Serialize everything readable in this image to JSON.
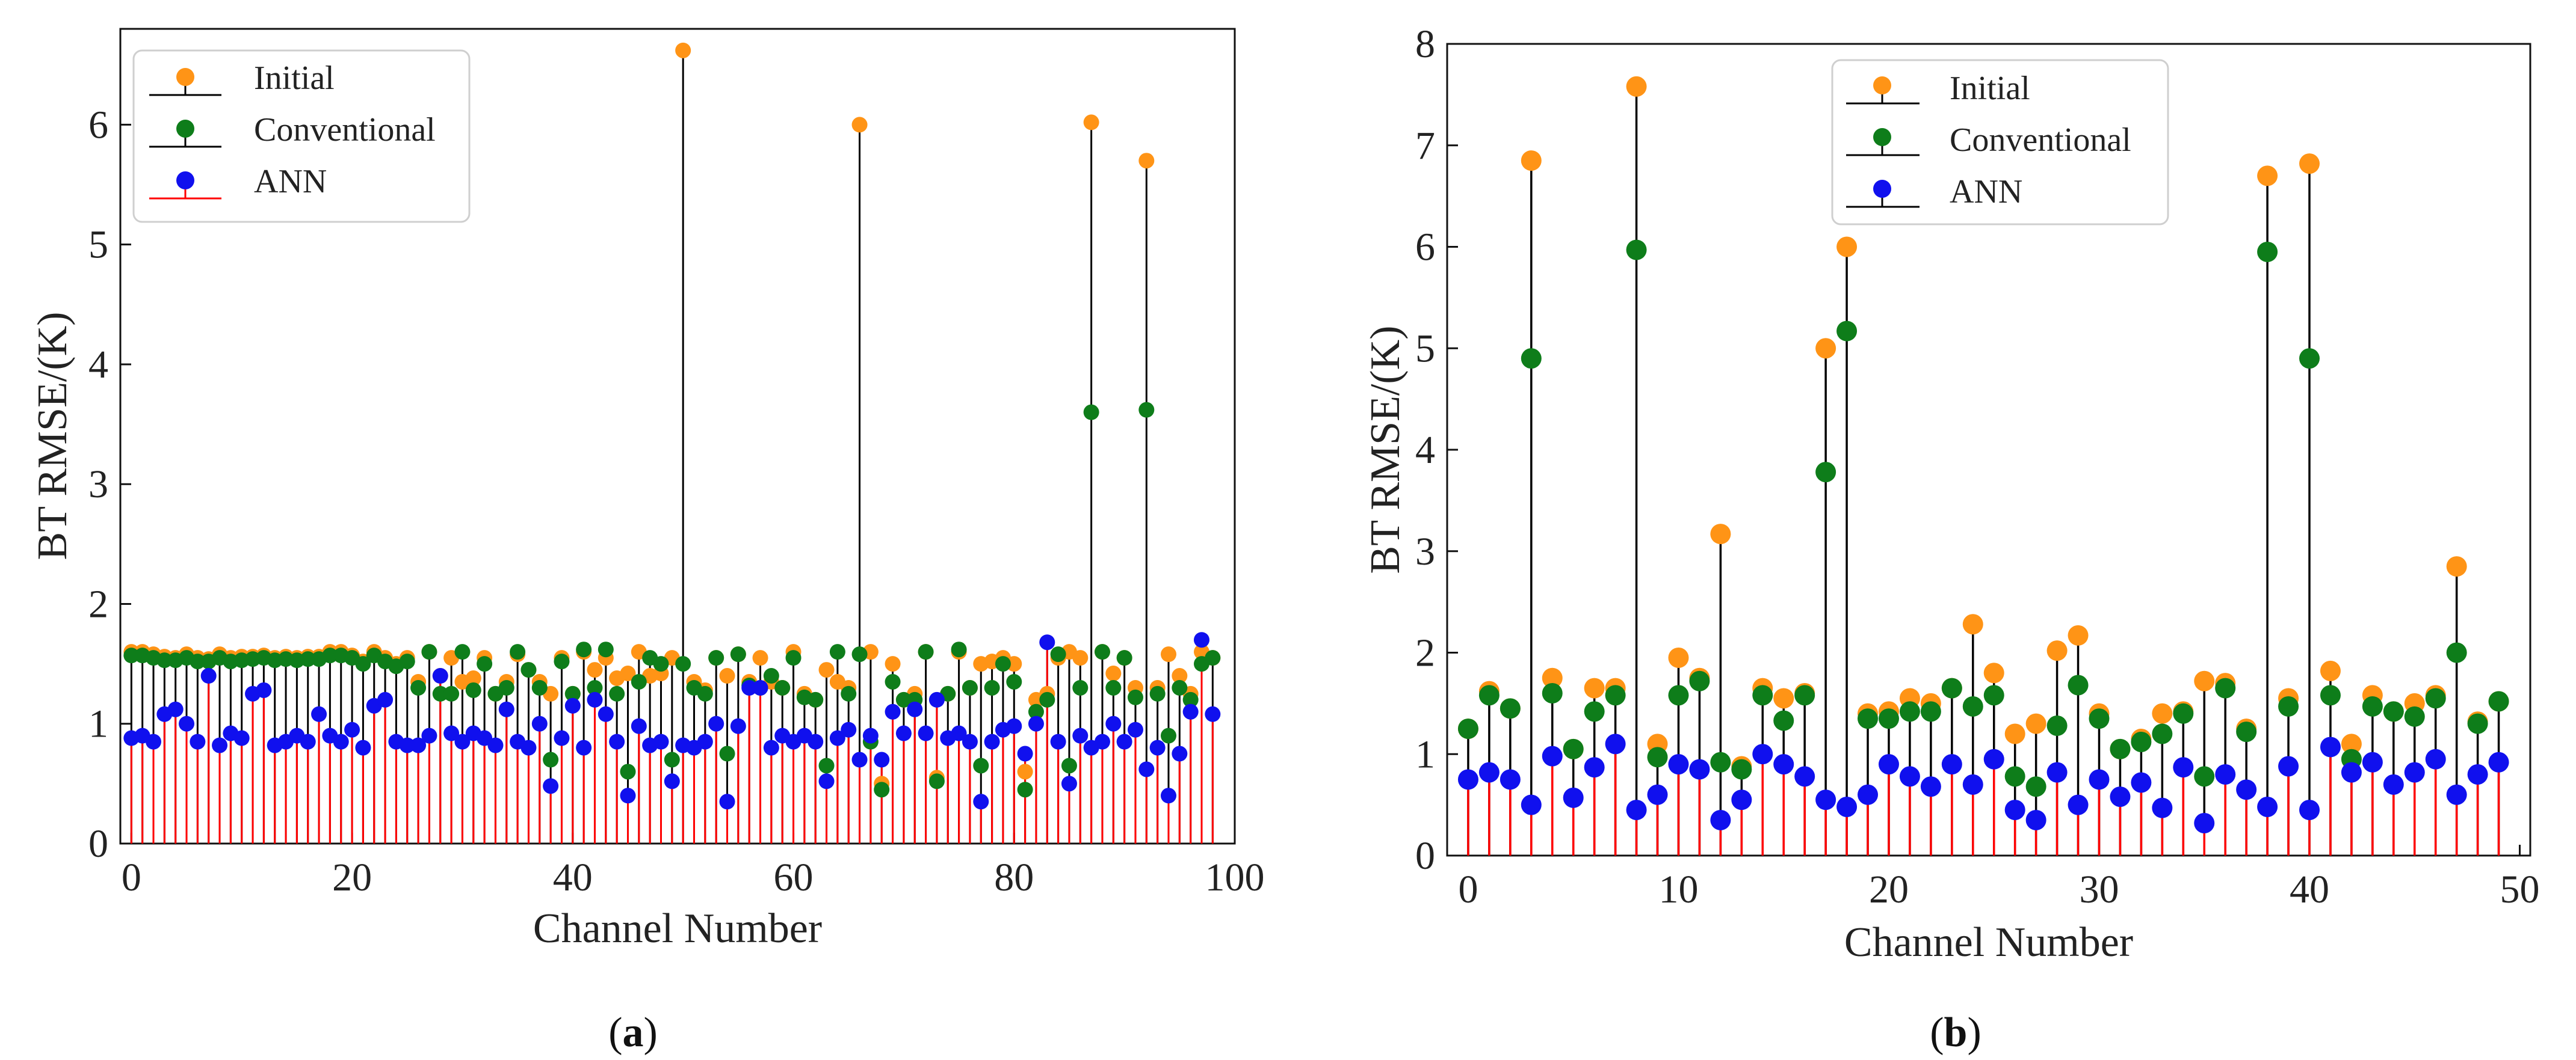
{
  "figure": {
    "series_colors": {
      "Initial": "#ff9416",
      "Conventional": "#0e7d1a",
      "ANN": "#1010ee"
    },
    "stem_colors": {
      "upper": "#000000",
      "base": "#ff0000"
    }
  },
  "chart_data": [
    {
      "type": "scatter",
      "subtype": "stem",
      "panel": {
        "open": "(",
        "letter": "a",
        "close": ")"
      },
      "title": "",
      "xlabel": "Channel Number",
      "ylabel": "BT RMSE/(K)",
      "xlim": [
        -1,
        100
      ],
      "ylim": [
        0,
        6.8
      ],
      "xticks": [
        0,
        20,
        40,
        60,
        80,
        100
      ],
      "yticks": [
        0,
        1,
        2,
        3,
        4,
        5,
        6
      ],
      "xtick_labels": [
        "0",
        "20",
        "40",
        "60",
        "80",
        "100"
      ],
      "ytick_labels": [
        "0",
        "1",
        "2",
        "3",
        "4",
        "5",
        "6"
      ],
      "legend": {
        "placement": "top-left",
        "entries": [
          "Initial",
          "Conventional",
          "ANN"
        ]
      },
      "x": [
        0,
        1,
        2,
        3,
        4,
        5,
        6,
        7,
        8,
        9,
        10,
        11,
        12,
        13,
        14,
        15,
        16,
        17,
        18,
        19,
        20,
        21,
        22,
        23,
        24,
        25,
        26,
        27,
        28,
        29,
        30,
        31,
        32,
        33,
        34,
        35,
        36,
        37,
        38,
        39,
        40,
        41,
        42,
        43,
        44,
        45,
        46,
        47,
        48,
        49,
        50,
        51,
        52,
        53,
        54,
        55,
        56,
        57,
        58,
        59,
        60,
        61,
        62,
        63,
        64,
        65,
        66,
        67,
        68,
        69,
        70,
        71,
        72,
        73,
        74,
        75,
        76,
        77,
        78,
        79,
        80,
        81,
        82,
        83,
        84,
        85,
        86,
        87,
        88,
        89,
        90,
        91,
        92,
        93,
        94,
        95,
        96,
        97,
        98
      ],
      "series": [
        {
          "name": "Initial",
          "values": [
            1.6,
            1.6,
            1.58,
            1.56,
            1.55,
            1.58,
            1.55,
            1.54,
            1.58,
            1.55,
            1.56,
            1.56,
            1.57,
            1.55,
            1.56,
            1.55,
            1.56,
            1.56,
            1.6,
            1.6,
            1.57,
            1.52,
            1.6,
            1.55,
            1.5,
            1.55,
            1.35,
            1.6,
            1.4,
            1.55,
            1.35,
            1.38,
            1.55,
            1.25,
            1.35,
            1.58,
            1.45,
            1.35,
            1.25,
            1.55,
            1.25,
            1.6,
            1.45,
            1.55,
            1.38,
            1.42,
            1.6,
            1.4,
            1.42,
            1.55,
            6.62,
            1.35,
            1.28,
            1.55,
            1.4,
            1.58,
            1.35,
            1.55,
            1.35,
            1.3,
            1.6,
            1.25,
            1.2,
            1.45,
            1.35,
            1.3,
            6.0,
            1.6,
            0.5,
            1.5,
            1.2,
            1.25,
            1.6,
            0.55,
            1.25,
            1.6,
            1.3,
            1.5,
            1.52,
            1.55,
            1.5,
            0.6,
            1.2,
            1.25,
            1.55,
            1.6,
            1.55,
            6.02,
            1.6,
            1.42,
            1.55,
            1.3,
            5.7,
            1.3,
            1.58,
            1.4,
            1.25,
            1.6,
            1.55
          ]
        },
        {
          "name": "Conventional",
          "values": [
            1.57,
            1.57,
            1.55,
            1.53,
            1.53,
            1.55,
            1.52,
            1.52,
            1.55,
            1.52,
            1.53,
            1.54,
            1.55,
            1.53,
            1.54,
            1.53,
            1.54,
            1.54,
            1.57,
            1.57,
            1.55,
            1.5,
            1.57,
            1.52,
            1.48,
            1.52,
            1.3,
            1.6,
            1.25,
            1.25,
            1.6,
            1.28,
            1.5,
            1.25,
            1.3,
            1.6,
            1.45,
            1.3,
            0.7,
            1.52,
            1.25,
            1.62,
            1.3,
            1.62,
            1.25,
            0.6,
            1.35,
            1.55,
            1.5,
            0.7,
            1.5,
            1.3,
            1.25,
            1.55,
            0.75,
            1.58,
            1.32,
            1.3,
            1.4,
            1.3,
            1.55,
            1.22,
            1.2,
            0.65,
            1.6,
            1.25,
            1.58,
            0.85,
            0.45,
            1.35,
            1.2,
            1.2,
            1.6,
            0.52,
            1.25,
            1.62,
            1.3,
            0.65,
            1.3,
            1.5,
            1.35,
            0.45,
            1.1,
            1.2,
            1.58,
            0.65,
            1.3,
            3.6,
            1.6,
            1.3,
            1.55,
            1.22,
            3.62,
            1.25,
            0.9,
            1.3,
            1.2,
            1.5,
            1.55
          ]
        },
        {
          "name": "ANN",
          "values": [
            0.88,
            0.9,
            0.85,
            1.08,
            1.12,
            1.0,
            0.85,
            1.4,
            0.82,
            0.92,
            0.88,
            1.25,
            1.28,
            0.82,
            0.85,
            0.9,
            0.85,
            1.08,
            0.9,
            0.85,
            0.95,
            0.8,
            1.15,
            1.2,
            0.85,
            0.82,
            0.82,
            0.9,
            1.4,
            0.92,
            0.85,
            0.92,
            0.88,
            0.82,
            1.12,
            0.85,
            0.8,
            1.0,
            0.48,
            0.88,
            1.15,
            0.8,
            1.2,
            1.08,
            0.85,
            0.4,
            0.98,
            0.82,
            0.85,
            0.52,
            0.82,
            0.8,
            0.85,
            1.0,
            0.35,
            0.98,
            1.3,
            1.3,
            0.8,
            0.9,
            0.85,
            0.9,
            0.85,
            0.52,
            0.88,
            0.95,
            0.7,
            0.9,
            0.7,
            1.1,
            0.92,
            1.12,
            0.92,
            1.2,
            0.88,
            0.92,
            0.85,
            0.35,
            0.85,
            0.95,
            0.98,
            0.75,
            1.0,
            1.68,
            0.85,
            0.5,
            0.9,
            0.8,
            0.85,
            1.0,
            0.85,
            0.95,
            0.62,
            0.8,
            0.4,
            0.75,
            1.1,
            1.7,
            1.08
          ]
        }
      ]
    },
    {
      "type": "scatter",
      "subtype": "stem",
      "panel": {
        "open": "(",
        "letter": "b",
        "close": ")"
      },
      "title": "",
      "xlabel": "Channel Number",
      "ylabel": "BT RMSE/(K)",
      "xlim": [
        -1,
        50.5
      ],
      "ylim": [
        0,
        8
      ],
      "xticks": [
        0,
        10,
        20,
        30,
        40,
        50
      ],
      "yticks": [
        0,
        1,
        2,
        3,
        4,
        5,
        6,
        7,
        8
      ],
      "xtick_labels": [
        "0",
        "10",
        "20",
        "30",
        "40",
        "50"
      ],
      "ytick_labels": [
        "0",
        "1",
        "2",
        "3",
        "4",
        "5",
        "6",
        "7",
        "8"
      ],
      "legend": {
        "placement": "top-center",
        "entries": [
          "Initial",
          "Conventional",
          "ANN"
        ]
      },
      "x": [
        0,
        1,
        2,
        3,
        4,
        5,
        6,
        7,
        8,
        9,
        10,
        11,
        12,
        13,
        14,
        15,
        16,
        17,
        18,
        19,
        20,
        21,
        22,
        23,
        24,
        25,
        26,
        27,
        28,
        29,
        30,
        31,
        32,
        33,
        34,
        35,
        36,
        37,
        38,
        39,
        40,
        41,
        42,
        43,
        44,
        45,
        46,
        47,
        48,
        49
      ],
      "series": [
        {
          "name": "Initial",
          "values": [
            1.25,
            1.62,
            1.45,
            6.85,
            1.75,
            1.05,
            1.65,
            1.65,
            7.58,
            1.1,
            1.95,
            1.75,
            3.17,
            0.88,
            1.65,
            1.55,
            1.6,
            5.0,
            6.0,
            1.4,
            1.42,
            1.55,
            1.5,
            1.65,
            2.28,
            1.8,
            1.2,
            1.3,
            2.02,
            2.17,
            1.4,
            1.05,
            1.15,
            1.4,
            1.42,
            1.72,
            1.7,
            1.25,
            6.7,
            1.55,
            6.82,
            1.82,
            1.1,
            1.58,
            1.42,
            1.5,
            1.58,
            2.85,
            1.32,
            1.52
          ]
        },
        {
          "name": "Conventional",
          "values": [
            1.25,
            1.58,
            1.45,
            4.9,
            1.6,
            1.05,
            1.42,
            1.58,
            5.97,
            0.97,
            1.58,
            1.72,
            0.92,
            0.85,
            1.58,
            1.33,
            1.58,
            3.78,
            5.17,
            1.35,
            1.35,
            1.42,
            1.42,
            1.65,
            1.47,
            1.58,
            0.78,
            0.68,
            1.28,
            1.68,
            1.35,
            1.05,
            1.12,
            1.2,
            1.4,
            0.78,
            1.65,
            1.22,
            5.95,
            1.47,
            4.9,
            1.58,
            0.95,
            1.47,
            1.42,
            1.37,
            1.55,
            2.0,
            1.3,
            1.52
          ]
        },
        {
          "name": "ANN",
          "values": [
            0.75,
            0.82,
            0.75,
            0.5,
            0.98,
            0.57,
            0.87,
            1.1,
            0.45,
            0.6,
            0.9,
            0.85,
            0.35,
            0.55,
            1.0,
            0.9,
            0.78,
            0.55,
            0.48,
            0.6,
            0.9,
            0.78,
            0.68,
            0.9,
            0.7,
            0.95,
            0.45,
            0.35,
            0.82,
            0.5,
            0.75,
            0.58,
            0.72,
            0.47,
            0.87,
            0.32,
            0.8,
            0.65,
            0.48,
            0.88,
            0.45,
            1.07,
            0.82,
            0.92,
            0.7,
            0.82,
            0.95,
            0.6,
            0.8,
            0.92
          ]
        }
      ]
    }
  ]
}
